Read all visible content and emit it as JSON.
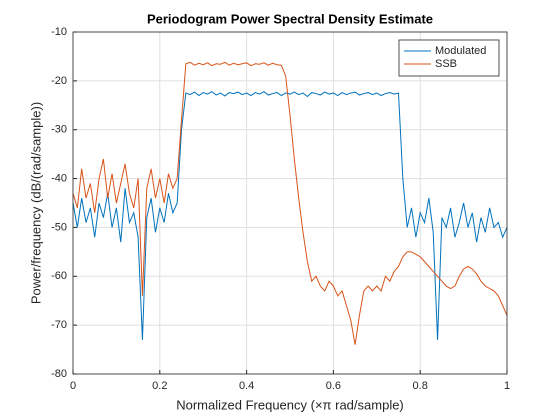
{
  "chart_data": {
    "type": "line",
    "title": "Periodogram Power Spectral Density Estimate",
    "x_label": "Normalized Frequency (×π rad/sample)",
    "y_label": "Power/frequency (dB/(rad/sample))",
    "x": [
      0,
      0.01,
      0.02,
      0.03,
      0.04,
      0.05,
      0.06,
      0.07,
      0.08,
      0.09,
      0.1,
      0.11,
      0.12,
      0.13,
      0.14,
      0.15,
      0.16,
      0.17,
      0.18,
      0.19,
      0.2,
      0.21,
      0.22,
      0.23,
      0.24,
      0.25,
      0.26,
      0.27,
      0.28,
      0.29,
      0.3,
      0.31,
      0.32,
      0.33,
      0.34,
      0.35,
      0.36,
      0.37,
      0.38,
      0.39,
      0.4,
      0.41,
      0.42,
      0.43,
      0.44,
      0.45,
      0.46,
      0.47,
      0.48,
      0.49,
      0.5,
      0.51,
      0.52,
      0.53,
      0.54,
      0.55,
      0.56,
      0.57,
      0.58,
      0.59,
      0.6,
      0.61,
      0.62,
      0.63,
      0.64,
      0.65,
      0.66,
      0.67,
      0.68,
      0.69,
      0.7,
      0.71,
      0.72,
      0.73,
      0.74,
      0.75,
      0.76,
      0.77,
      0.78,
      0.79,
      0.8,
      0.81,
      0.82,
      0.83,
      0.84,
      0.85,
      0.86,
      0.87,
      0.88,
      0.89,
      0.9,
      0.91,
      0.92,
      0.93,
      0.94,
      0.95,
      0.96,
      0.97,
      0.98,
      0.99,
      1
    ],
    "series": [
      {
        "name": "Modulated",
        "color": "#0072bd",
        "values": [
          -45,
          -50,
          -44,
          -49,
          -46,
          -52,
          -45,
          -48,
          -43,
          -50,
          -46,
          -53,
          -42,
          -49,
          -47,
          -52,
          -73,
          -48,
          -44,
          -51,
          -46,
          -49,
          -43,
          -47,
          -45,
          -30,
          -22.5,
          -22.8,
          -22.3,
          -23,
          -22.4,
          -22.7,
          -22.2,
          -22.9,
          -22.5,
          -23.1,
          -22.4,
          -22.6,
          -22.3,
          -22.8,
          -22.5,
          -23,
          -22.4,
          -22.7,
          -22.2,
          -22.9,
          -22.6,
          -22.4,
          -23,
          -22.5,
          -22.7,
          -22.3,
          -22.8,
          -22.5,
          -23.2,
          -22.4,
          -22.6,
          -22.9,
          -22.3,
          -22.7,
          -22.5,
          -23,
          -22.4,
          -22.8,
          -22.5,
          -22.3,
          -22.9,
          -22.6,
          -22.4,
          -22.8,
          -22.5,
          -23,
          -22.6,
          -22.4,
          -22.7,
          -22.5,
          -40,
          -50,
          -46,
          -52,
          -47,
          -49,
          -44,
          -51,
          -73,
          -48,
          -50,
          -46,
          -52,
          -49,
          -45,
          -50,
          -47,
          -53,
          -48,
          -51,
          -46,
          -50,
          -49,
          -52,
          -50
        ]
      },
      {
        "name": "SSB",
        "color": "#d95319",
        "values": [
          -43,
          -46,
          -38,
          -44,
          -41,
          -47,
          -40,
          -36,
          -44,
          -39,
          -45,
          -41,
          -37,
          -43,
          -46,
          -40,
          -64,
          -42,
          -38,
          -44,
          -40,
          -45,
          -39,
          -42,
          -40,
          -28,
          -16.5,
          -16.2,
          -16.8,
          -16.4,
          -16.7,
          -16.3,
          -16.9,
          -16.5,
          -16.6,
          -16.2,
          -16.8,
          -16.4,
          -16.7,
          -16.5,
          -16.3,
          -16.9,
          -16.5,
          -16.6,
          -16.3,
          -16.8,
          -16.4,
          -16.7,
          -16.8,
          -19,
          -27,
          -36,
          -44,
          -51,
          -57,
          -61,
          -60,
          -62,
          -63,
          -61,
          -62,
          -64,
          -63,
          -66,
          -69,
          -74,
          -68,
          -63,
          -62,
          -63,
          -62,
          -63,
          -60,
          -61,
          -59,
          -58,
          -56,
          -55,
          -55,
          -55.5,
          -56,
          -57,
          -58,
          -59,
          -60,
          -61,
          -62,
          -62.5,
          -62,
          -60,
          -58.5,
          -58,
          -58.5,
          -59.5,
          -61,
          -62,
          -62.5,
          -63,
          -64,
          -66,
          -68
        ]
      }
    ],
    "xlim": [
      0,
      1
    ],
    "xticks": [
      0,
      0.2,
      0.4,
      0.6,
      0.8,
      1
    ],
    "ylim": [
      -80,
      -10
    ],
    "yticks": [
      -80,
      -70,
      -60,
      -50,
      -40,
      -30,
      -20,
      -10
    ],
    "grid": true,
    "legend": "top-right"
  }
}
